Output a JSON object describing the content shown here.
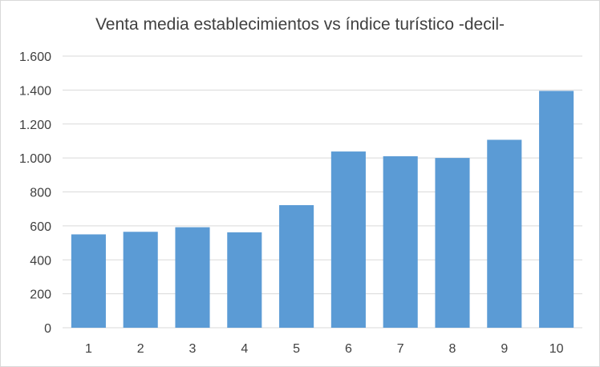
{
  "chart_data": {
    "type": "bar",
    "title": "Venta media establecimientos vs índice turístico -decil-",
    "xlabel": "",
    "ylabel": "",
    "categories": [
      "1",
      "2",
      "3",
      "4",
      "5",
      "6",
      "7",
      "8",
      "9",
      "10"
    ],
    "series": [
      {
        "values": [
          550,
          565,
          592,
          562,
          722,
          1038,
          1010,
          1000,
          1107,
          1395
        ]
      }
    ],
    "ylim": [
      0,
      1600
    ],
    "yticks": [
      0,
      200,
      400,
      600,
      800,
      1000,
      1200,
      1400,
      1600
    ],
    "ytick_labels": [
      "0",
      "200",
      "400",
      "600",
      "800",
      "1.000",
      "1.200",
      "1.400",
      "1.600"
    ],
    "grid": true,
    "legend": "none",
    "colors": {
      "bar": "#5b9bd5",
      "grid": "#d9d9d9",
      "text": "#404040"
    }
  }
}
